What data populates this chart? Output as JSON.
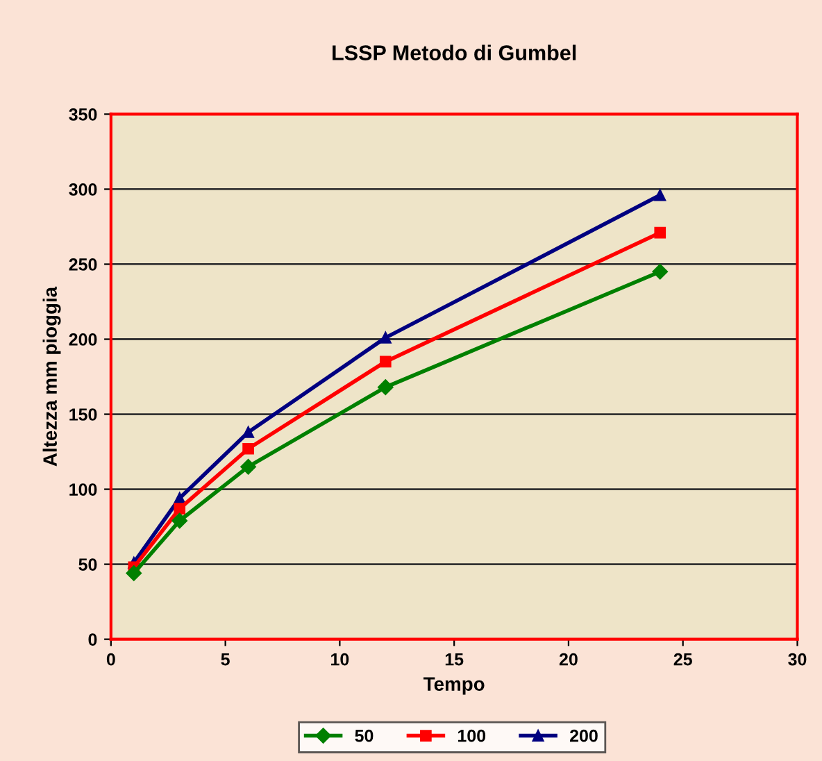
{
  "chart_data": {
    "type": "line",
    "title": "LSSP Metodo di Gumbel",
    "xlabel": "Tempo",
    "ylabel": "Altezza mm pioggia",
    "x": [
      1,
      3,
      6,
      12,
      24
    ],
    "series": [
      {
        "name": "50",
        "color": "#008000",
        "marker": "diamond",
        "values": [
          44,
          79,
          115,
          168,
          245
        ]
      },
      {
        "name": "100",
        "color": "#ff0000",
        "marker": "square",
        "values": [
          48,
          87,
          127,
          185,
          271
        ]
      },
      {
        "name": "200",
        "color": "#000080",
        "marker": "triangle",
        "values": [
          51,
          94,
          138,
          201,
          296
        ]
      }
    ],
    "xlim": [
      0,
      30
    ],
    "xticks": [
      0,
      5,
      10,
      15,
      20,
      25,
      30
    ],
    "ylim": [
      0,
      350
    ],
    "yticks": [
      0,
      50,
      100,
      150,
      200,
      250,
      300,
      350
    ],
    "grid": "y",
    "legend": "bottom",
    "line_style": "solid"
  }
}
